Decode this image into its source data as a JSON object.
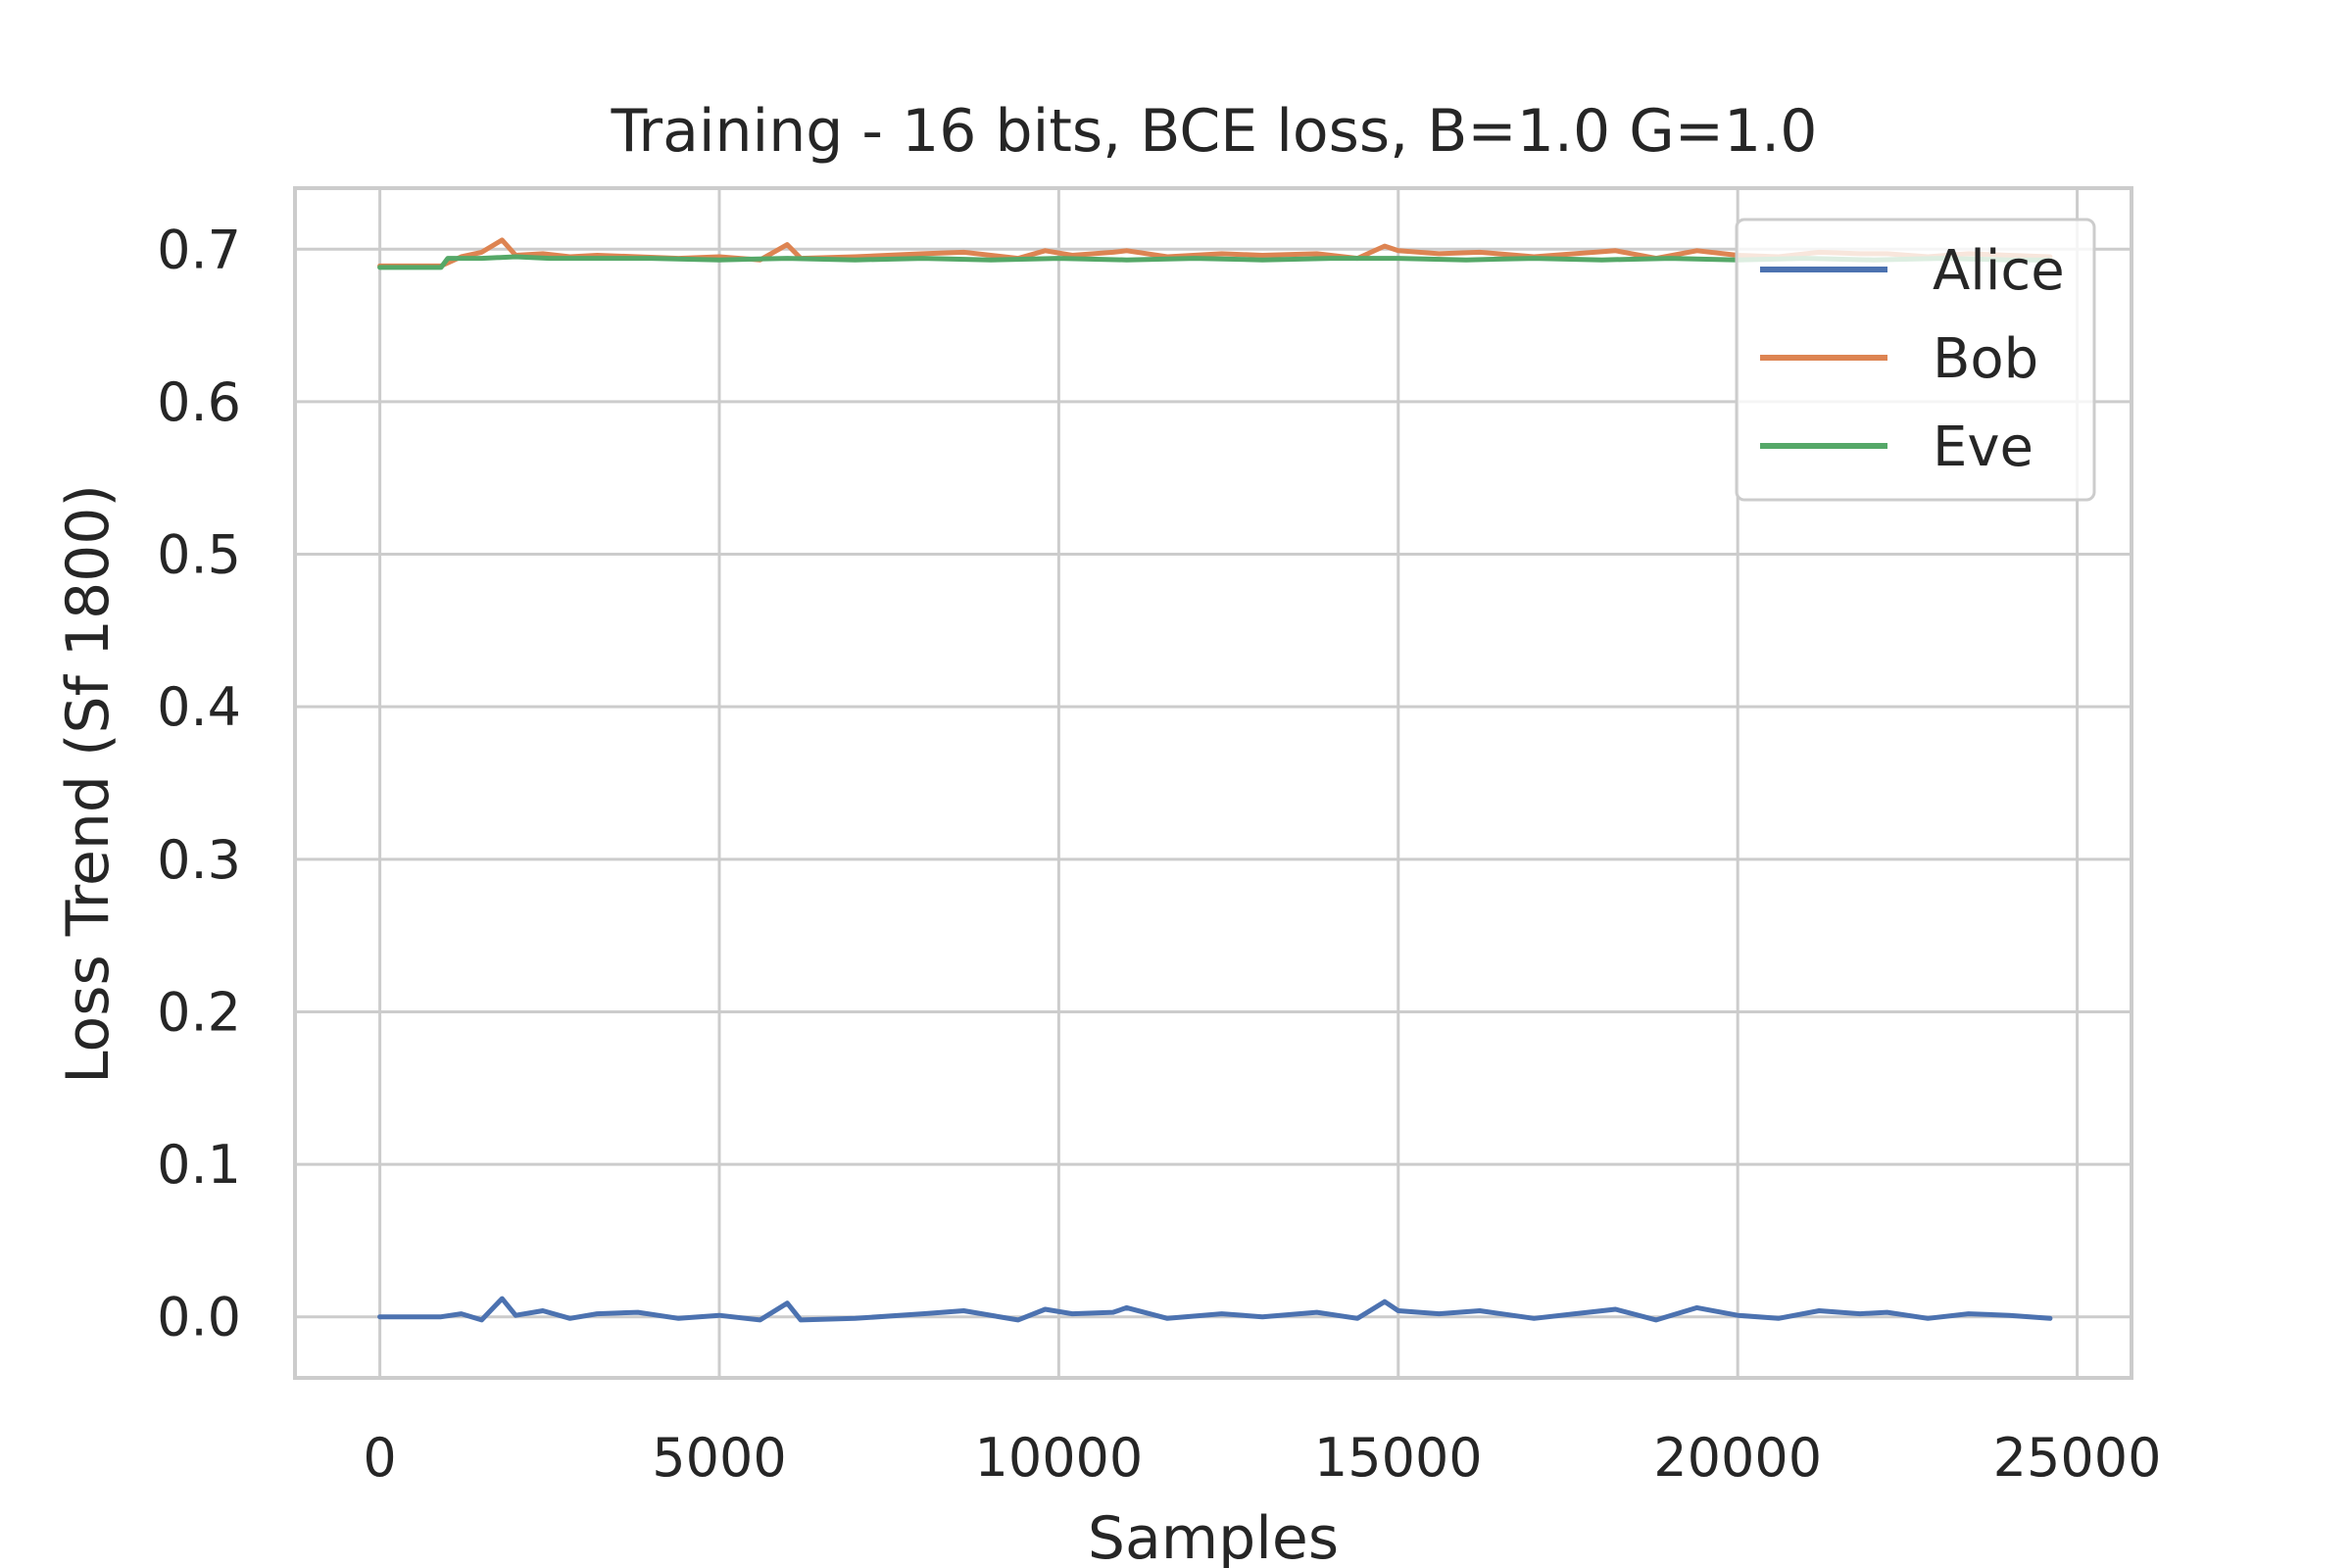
{
  "chart_data": {
    "type": "line",
    "title": "Training - 16 bits, BCE loss, B=1.0 G=1.0",
    "xlabel": "Samples",
    "ylabel": "Loss Trend (Sf 1800)",
    "xlim": [
      -1250,
      25800
    ],
    "ylim": [
      -0.04,
      0.74
    ],
    "xticks": [
      0,
      5000,
      10000,
      15000,
      20000,
      25000
    ],
    "xtick_labels": [
      "0",
      "5000",
      "10000",
      "15000",
      "20000",
      "25000"
    ],
    "yticks": [
      0.0,
      0.1,
      0.2,
      0.3,
      0.4,
      0.5,
      0.6,
      0.7
    ],
    "ytick_labels": [
      "0.0",
      "0.1",
      "0.2",
      "0.3",
      "0.4",
      "0.5",
      "0.6",
      "0.7"
    ],
    "grid": true,
    "legend_position": "top-right",
    "series": [
      {
        "name": "Alice",
        "color": "#4c72b0",
        "x": [
          0,
          900,
          1200,
          1500,
          1800,
          2000,
          2400,
          2800,
          3200,
          3800,
          4400,
          5000,
          5600,
          6000,
          6200,
          7000,
          8000,
          8600,
          9400,
          9800,
          10200,
          10800,
          11000,
          11600,
          12400,
          13000,
          13800,
          14400,
          14800,
          15000,
          15600,
          16200,
          17000,
          17600,
          18200,
          18800,
          19400,
          20000,
          20600,
          21200,
          21800,
          22200,
          22800,
          23400,
          24000,
          24600
        ],
        "y": [
          0.0,
          0.0,
          0.002,
          -0.002,
          0.012,
          0.001,
          0.004,
          -0.001,
          0.002,
          0.003,
          -0.001,
          0.001,
          -0.002,
          0.009,
          -0.002,
          -0.001,
          0.002,
          0.004,
          -0.002,
          0.005,
          0.002,
          0.003,
          0.006,
          -0.001,
          0.002,
          0.0,
          0.003,
          -0.001,
          0.01,
          0.004,
          0.002,
          0.004,
          -0.001,
          0.002,
          0.005,
          -0.002,
          0.006,
          0.001,
          -0.001,
          0.004,
          0.002,
          0.003,
          -0.001,
          0.002,
          0.001,
          -0.001
        ]
      },
      {
        "name": "Bob",
        "color": "#dd8452",
        "x": [
          0,
          900,
          1200,
          1500,
          1800,
          2000,
          2400,
          2800,
          3200,
          3800,
          4400,
          5000,
          5600,
          6000,
          6200,
          7000,
          8000,
          8600,
          9400,
          9800,
          10200,
          10800,
          11000,
          11600,
          12400,
          13000,
          13800,
          14400,
          14800,
          15000,
          15600,
          16200,
          17000,
          17600,
          18200,
          18800,
          19400,
          20000,
          20600,
          21200,
          21800,
          22200,
          22800,
          23400,
          24000,
          24600
        ],
        "y": [
          0.689,
          0.689,
          0.695,
          0.698,
          0.706,
          0.696,
          0.697,
          0.695,
          0.696,
          0.695,
          0.694,
          0.695,
          0.693,
          0.703,
          0.694,
          0.695,
          0.697,
          0.698,
          0.694,
          0.699,
          0.696,
          0.698,
          0.699,
          0.695,
          0.697,
          0.696,
          0.697,
          0.694,
          0.702,
          0.699,
          0.697,
          0.698,
          0.695,
          0.697,
          0.699,
          0.694,
          0.699,
          0.696,
          0.695,
          0.698,
          0.697,
          0.697,
          0.695,
          0.697,
          0.696,
          0.695
        ]
      },
      {
        "name": "Eve",
        "color": "#55a868",
        "x": [
          0,
          900,
          1000,
          1500,
          2000,
          2500,
          3000,
          4000,
          5000,
          6000,
          7000,
          8000,
          9000,
          10000,
          11000,
          12000,
          13000,
          14000,
          15000,
          16000,
          17000,
          18000,
          19000,
          20000,
          21000,
          22000,
          23000,
          24000,
          24600
        ],
        "y": [
          0.688,
          0.688,
          0.694,
          0.694,
          0.695,
          0.694,
          0.694,
          0.694,
          0.693,
          0.694,
          0.693,
          0.694,
          0.693,
          0.694,
          0.693,
          0.694,
          0.693,
          0.694,
          0.694,
          0.693,
          0.694,
          0.693,
          0.694,
          0.693,
          0.694,
          0.693,
          0.694,
          0.693,
          0.693
        ]
      }
    ]
  }
}
